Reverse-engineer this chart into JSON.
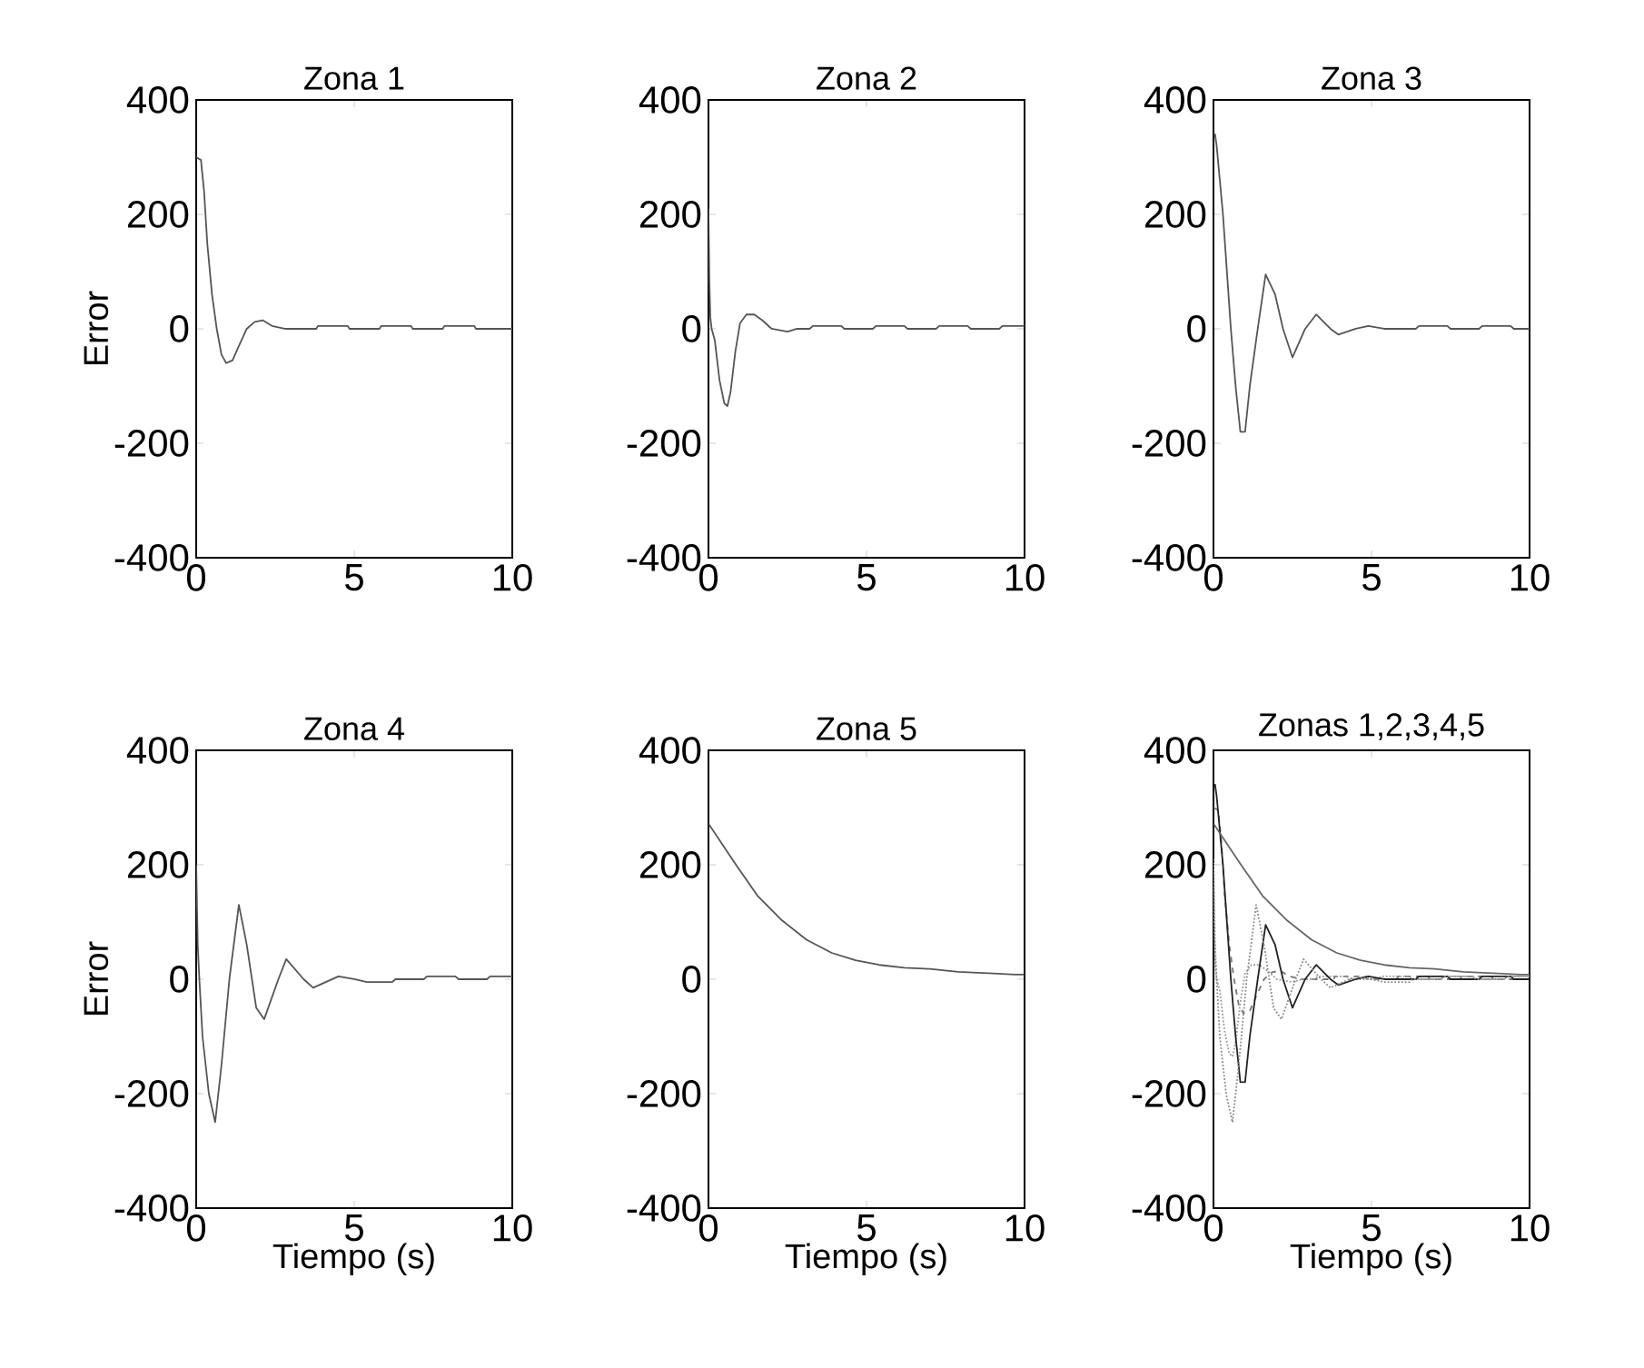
{
  "chart_data": [
    {
      "type": "line",
      "title": "Zona 1",
      "ylabel": "Error",
      "xlim": [
        0,
        10
      ],
      "ylim": [
        -400,
        400
      ],
      "xticks": [
        0,
        5,
        10
      ],
      "yticks": [
        -400,
        -200,
        0,
        200,
        400
      ],
      "series": [
        {
          "color": "#555555",
          "x": [
            0,
            0.15,
            0.25,
            0.35,
            0.5,
            0.65,
            0.8,
            0.95,
            1.15,
            1.35,
            1.6,
            1.85,
            2.1,
            2.4,
            2.8,
            3.8,
            3.85,
            4.8,
            4.85,
            5.8,
            5.85,
            6.8,
            6.85,
            7.8,
            7.85,
            8.8,
            8.85,
            10
          ],
          "values": [
            300,
            295,
            240,
            150,
            60,
            0,
            -45,
            -60,
            -55,
            -30,
            0,
            12,
            15,
            5,
            0,
            0,
            5,
            5,
            0,
            0,
            5,
            5,
            0,
            0,
            5,
            5,
            0,
            0
          ]
        }
      ]
    },
    {
      "type": "line",
      "title": "Zona 2",
      "xlim": [
        0,
        10
      ],
      "ylim": [
        -400,
        400
      ],
      "xticks": [
        0,
        5,
        10
      ],
      "yticks": [
        -400,
        -200,
        0,
        200,
        400
      ],
      "series": [
        {
          "color": "#555555",
          "x": [
            0,
            0.03,
            0.06,
            0.1,
            0.2,
            0.35,
            0.5,
            0.6,
            0.7,
            0.85,
            1.0,
            1.2,
            1.45,
            1.7,
            2.0,
            2.5,
            2.8,
            3.2,
            3.3,
            4.2,
            4.3,
            5.2,
            5.3,
            6.2,
            6.3,
            7.2,
            7.3,
            8.2,
            8.3,
            9.2,
            9.3,
            10
          ],
          "values": [
            210,
            80,
            20,
            0,
            -20,
            -90,
            -130,
            -135,
            -110,
            -40,
            10,
            25,
            25,
            15,
            0,
            -5,
            0,
            0,
            5,
            5,
            0,
            0,
            5,
            5,
            0,
            0,
            5,
            5,
            0,
            0,
            5,
            5
          ]
        }
      ]
    },
    {
      "type": "line",
      "title": "Zona 3",
      "xlim": [
        0,
        10
      ],
      "ylim": [
        -400,
        400
      ],
      "xticks": [
        0,
        5,
        10
      ],
      "yticks": [
        -400,
        -200,
        0,
        200,
        400
      ],
      "series": [
        {
          "color": "#555555",
          "x": [
            0,
            0.05,
            0.1,
            0.3,
            0.55,
            0.7,
            0.85,
            1.0,
            1.15,
            1.4,
            1.65,
            1.95,
            2.2,
            2.5,
            2.9,
            3.25,
            3.7,
            3.95,
            4.5,
            4.9,
            5.4,
            6.4,
            6.5,
            7.4,
            7.5,
            8.4,
            8.5,
            9.4,
            9.5,
            10
          ],
          "values": [
            340,
            340,
            320,
            200,
            0,
            -100,
            -180,
            -180,
            -100,
            0,
            95,
            60,
            0,
            -50,
            0,
            25,
            0,
            -10,
            0,
            5,
            0,
            0,
            5,
            5,
            0,
            0,
            5,
            5,
            0,
            0
          ]
        }
      ]
    },
    {
      "type": "line",
      "title": "Zona 4",
      "ylabel": "Error",
      "xlabel": "Tiempo (s)",
      "xlim": [
        0,
        10
      ],
      "ylim": [
        -400,
        400
      ],
      "xticks": [
        0,
        5,
        10
      ],
      "yticks": [
        -400,
        -200,
        0,
        200,
        400
      ],
      "series": [
        {
          "color": "#555555",
          "x": [
            0,
            0.05,
            0.1,
            0.2,
            0.4,
            0.6,
            0.8,
            1.05,
            1.35,
            1.6,
            1.9,
            2.15,
            2.6,
            2.85,
            3.4,
            3.7,
            4.5,
            5.0,
            5.4,
            6.2,
            6.3,
            7.2,
            7.3,
            8.2,
            8.3,
            9.2,
            9.3,
            10
          ],
          "values": [
            200,
            60,
            0,
            -100,
            -200,
            -250,
            -150,
            0,
            130,
            60,
            -50,
            -70,
            0,
            35,
            0,
            -15,
            5,
            0,
            -5,
            -5,
            0,
            0,
            5,
            5,
            0,
            0,
            5,
            5
          ]
        }
      ]
    },
    {
      "type": "line",
      "title": "Zona 5",
      "xlabel": "Tiempo (s)",
      "xlim": [
        0,
        10
      ],
      "ylim": [
        -400,
        400
      ],
      "xticks": [
        0,
        5,
        10
      ],
      "yticks": [
        -400,
        -200,
        0,
        200,
        400
      ],
      "series": [
        {
          "color": "#555555",
          "x": [
            0,
            0.87,
            1.55,
            2.3,
            3.1,
            3.9,
            4.65,
            5.4,
            6.2,
            7.0,
            7.9,
            9.0,
            9.7,
            10
          ],
          "values": [
            272,
            200,
            146,
            104,
            69,
            46,
            33,
            25,
            20,
            18,
            13,
            10,
            8,
            8
          ]
        }
      ]
    },
    {
      "type": "line",
      "title": "Zonas 1,2,3,4,5",
      "xlabel": "Tiempo (s)",
      "xlim": [
        0,
        10
      ],
      "ylim": [
        -400,
        400
      ],
      "xticks": [
        0,
        5,
        10
      ],
      "yticks": [
        -400,
        -200,
        0,
        200,
        400
      ],
      "series": [
        {
          "color": "#777777",
          "line_style": "dashed",
          "x": [
            0,
            0.15,
            0.25,
            0.35,
            0.5,
            0.65,
            0.8,
            0.95,
            1.15,
            1.35,
            1.6,
            1.85,
            2.1,
            2.4,
            2.8,
            3.8,
            3.85,
            4.8,
            4.85,
            5.8,
            5.85,
            6.8,
            6.85,
            7.8,
            7.85,
            8.8,
            8.85,
            10
          ],
          "values": [
            300,
            295,
            240,
            150,
            60,
            0,
            -45,
            -60,
            -55,
            -30,
            0,
            12,
            15,
            5,
            0,
            0,
            5,
            5,
            0,
            0,
            5,
            5,
            0,
            0,
            5,
            5,
            0,
            0
          ]
        },
        {
          "color": "#999999",
          "line_style": "dotted",
          "x": [
            0,
            0.03,
            0.06,
            0.1,
            0.2,
            0.35,
            0.5,
            0.6,
            0.7,
            0.85,
            1.0,
            1.2,
            1.45,
            1.7,
            2.0,
            2.5,
            2.8,
            3.2,
            3.3,
            4.2,
            4.3,
            5.2,
            5.3,
            6.2,
            6.3,
            7.2,
            7.3,
            8.2,
            8.3,
            9.2,
            9.3,
            10
          ],
          "values": [
            210,
            80,
            20,
            0,
            -20,
            -90,
            -130,
            -135,
            -110,
            -40,
            10,
            25,
            25,
            15,
            0,
            -5,
            0,
            0,
            5,
            5,
            0,
            0,
            5,
            5,
            0,
            0,
            5,
            5,
            0,
            0,
            5,
            5
          ]
        },
        {
          "color": "#222222",
          "line_style": "solid",
          "x": [
            0,
            0.05,
            0.1,
            0.3,
            0.55,
            0.7,
            0.85,
            1.0,
            1.15,
            1.4,
            1.65,
            1.95,
            2.2,
            2.5,
            2.9,
            3.25,
            3.7,
            3.95,
            4.5,
            4.9,
            5.4,
            6.4,
            6.5,
            7.4,
            7.5,
            8.4,
            8.5,
            9.4,
            9.5,
            10
          ],
          "values": [
            340,
            340,
            320,
            200,
            0,
            -100,
            -180,
            -180,
            -100,
            0,
            95,
            60,
            0,
            -50,
            0,
            25,
            0,
            -10,
            0,
            5,
            0,
            0,
            5,
            5,
            0,
            0,
            5,
            5,
            0,
            0
          ]
        },
        {
          "color": "#888888",
          "line_style": "dotted",
          "x": [
            0,
            0.05,
            0.1,
            0.2,
            0.4,
            0.6,
            0.8,
            1.05,
            1.35,
            1.6,
            1.9,
            2.15,
            2.6,
            2.85,
            3.4,
            3.7,
            4.5,
            5.0,
            5.4,
            6.2,
            6.3,
            7.2,
            7.3,
            8.2,
            8.3,
            9.2,
            9.3,
            10
          ],
          "values": [
            200,
            60,
            0,
            -100,
            -200,
            -250,
            -150,
            0,
            130,
            60,
            -50,
            -70,
            0,
            35,
            0,
            -15,
            5,
            0,
            -5,
            -5,
            0,
            0,
            5,
            5,
            0,
            0,
            5,
            5
          ]
        },
        {
          "color": "#666666",
          "line_style": "solid",
          "x": [
            0,
            0.87,
            1.55,
            2.3,
            3.1,
            3.9,
            4.65,
            5.4,
            6.2,
            7.0,
            7.9,
            9.0,
            9.7,
            10
          ],
          "values": [
            272,
            200,
            146,
            104,
            69,
            46,
            33,
            25,
            20,
            18,
            13,
            10,
            8,
            8
          ]
        }
      ]
    }
  ]
}
